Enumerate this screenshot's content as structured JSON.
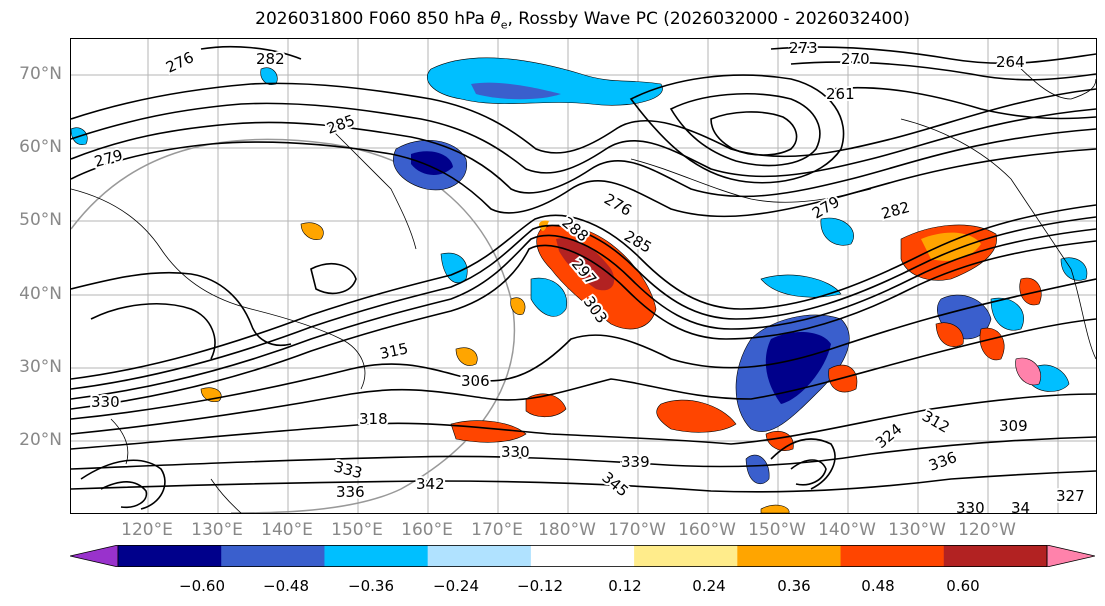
{
  "title": "2026031800 F060 850 hPa θe, Rossby Wave PC (2026032000 - 2026032400)",
  "title_parts": {
    "prefix": "2026031800 F060 850 hPa ",
    "theta": "θ",
    "sub": "e",
    "suffix": ", Rossby Wave PC (2026032000 - 2026032400)"
  },
  "lat_labels": [
    "70°N",
    "60°N",
    "50°N",
    "40°N",
    "30°N",
    "20°N"
  ],
  "lon_labels": [
    "120°E",
    "130°E",
    "140°E",
    "150°E",
    "160°E",
    "170°E",
    "180°W",
    "170°W",
    "160°W",
    "150°W",
    "140°W",
    "130°W",
    "120°W"
  ],
  "contour_labels": [
    "273",
    "270",
    "264",
    "261",
    "276",
    "282",
    "285",
    "279",
    "276",
    "285",
    "288",
    "297",
    "303",
    "279",
    "282",
    "315",
    "306",
    "318",
    "330",
    "333",
    "336",
    "342",
    "345",
    "339",
    "330",
    "324",
    "312",
    "309",
    "336",
    "327",
    "330",
    "34"
  ],
  "colorbar": {
    "ticks": [
      "−0.60",
      "−0.48",
      "−0.36",
      "−0.24",
      "−0.12",
      "0.12",
      "0.24",
      "0.36",
      "0.48",
      "0.60"
    ],
    "colors": [
      "#9932cc",
      "#00008b",
      "#3a5fcd",
      "#00bfff",
      "#b0e2ff",
      "#ffffff",
      "#ffec8b",
      "#ffa500",
      "#ff4500",
      "#b22222",
      "#ff82ab"
    ]
  },
  "colors": {
    "negative_strong": "#00008b",
    "negative_mid": "#3a5fcd",
    "negative_light": "#00bfff",
    "positive_light": "#ffa500",
    "positive_mid": "#ff4500",
    "positive_strong": "#b22222"
  }
}
